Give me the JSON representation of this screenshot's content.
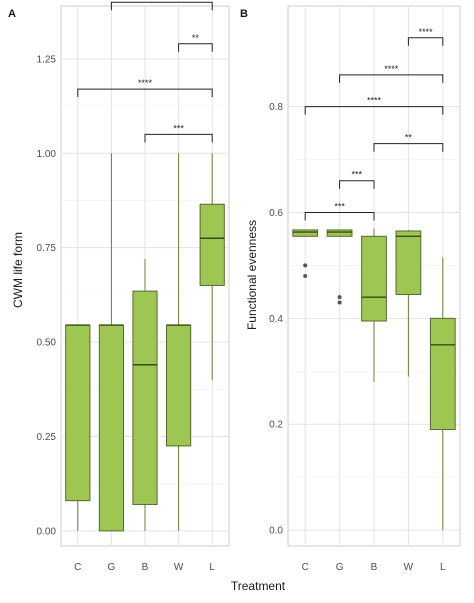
{
  "colors": {
    "box_fill": "#9dc653",
    "box_line": "#556b2f",
    "median": "#3a4a1e",
    "outlier": "#555555",
    "bracket": "#222222"
  },
  "xlabel": "Treatment",
  "chart_data": [
    {
      "type": "box",
      "panel_tag": "A",
      "title": "",
      "xlabel": "Treatment",
      "ylabel": "CWM life form",
      "categories": [
        "C",
        "G",
        "B",
        "W",
        "L"
      ],
      "ylim": [
        -0.04,
        1.39
      ],
      "yticks": [
        0.0,
        0.25,
        0.5,
        0.75,
        1.0,
        1.25
      ],
      "ytick_labels": [
        "0.00",
        "0.25",
        "0.50",
        "0.75",
        "1.00",
        "1.25"
      ],
      "grid": true,
      "boxes": [
        {
          "category": "C",
          "min": 0.0,
          "q1": 0.08,
          "median": 0.545,
          "q3": 0.545,
          "max": 0.545,
          "outliers": []
        },
        {
          "category": "G",
          "min": 0.0,
          "q1": 0.0,
          "median": 0.545,
          "q3": 0.545,
          "max": 1.0,
          "outliers": []
        },
        {
          "category": "B",
          "min": 0.0,
          "q1": 0.07,
          "median": 0.44,
          "q3": 0.635,
          "max": 0.72,
          "outliers": []
        },
        {
          "category": "W",
          "min": 0.0,
          "q1": 0.225,
          "median": 0.545,
          "q3": 0.545,
          "max": 1.0,
          "outliers": []
        },
        {
          "category": "L",
          "min": 0.4,
          "q1": 0.65,
          "median": 0.775,
          "q3": 0.865,
          "max": 1.0,
          "outliers": []
        }
      ],
      "brackets": [
        {
          "from": "G",
          "to": "L",
          "y": 1.4,
          "label": "***"
        },
        {
          "from": "W",
          "to": "L",
          "y": 1.29,
          "label": "**"
        },
        {
          "from": "C",
          "to": "L",
          "y": 1.17,
          "label": "****"
        },
        {
          "from": "B",
          "to": "L",
          "y": 1.05,
          "label": "***"
        }
      ]
    },
    {
      "type": "box",
      "panel_tag": "B",
      "title": "",
      "xlabel": "Treatment",
      "ylabel": "Functional evenness",
      "categories": [
        "C",
        "G",
        "B",
        "W",
        "L"
      ],
      "ylim": [
        -0.03,
        0.99
      ],
      "yticks": [
        0.0,
        0.2,
        0.4,
        0.6,
        0.8
      ],
      "ytick_labels": [
        "0.0",
        "0.2",
        "0.4",
        "0.6",
        "0.8"
      ],
      "grid": true,
      "boxes": [
        {
          "category": "C",
          "min": 0.555,
          "q1": 0.555,
          "median": 0.563,
          "q3": 0.567,
          "max": 0.567,
          "outliers": [
            0.5,
            0.48
          ]
        },
        {
          "category": "G",
          "min": 0.555,
          "q1": 0.555,
          "median": 0.563,
          "q3": 0.567,
          "max": 0.567,
          "outliers": [
            0.44,
            0.43
          ]
        },
        {
          "category": "B",
          "min": 0.28,
          "q1": 0.395,
          "median": 0.44,
          "q3": 0.555,
          "max": 0.57,
          "outliers": []
        },
        {
          "category": "W",
          "min": 0.29,
          "q1": 0.445,
          "median": 0.555,
          "q3": 0.565,
          "max": 0.567,
          "outliers": []
        },
        {
          "category": "L",
          "min": 0.0,
          "q1": 0.19,
          "median": 0.35,
          "q3": 0.4,
          "max": 0.515,
          "outliers": []
        }
      ],
      "brackets": [
        {
          "from": "W",
          "to": "L",
          "y": 0.93,
          "label": "****"
        },
        {
          "from": "G",
          "to": "L",
          "y": 0.86,
          "label": "****"
        },
        {
          "from": "C",
          "to": "L",
          "y": 0.8,
          "label": "****"
        },
        {
          "from": "B",
          "to": "L",
          "y": 0.73,
          "label": "**"
        },
        {
          "from": "G",
          "to": "B",
          "y": 0.66,
          "label": "***"
        },
        {
          "from": "C",
          "to": "B",
          "y": 0.6,
          "label": "***"
        }
      ]
    }
  ]
}
